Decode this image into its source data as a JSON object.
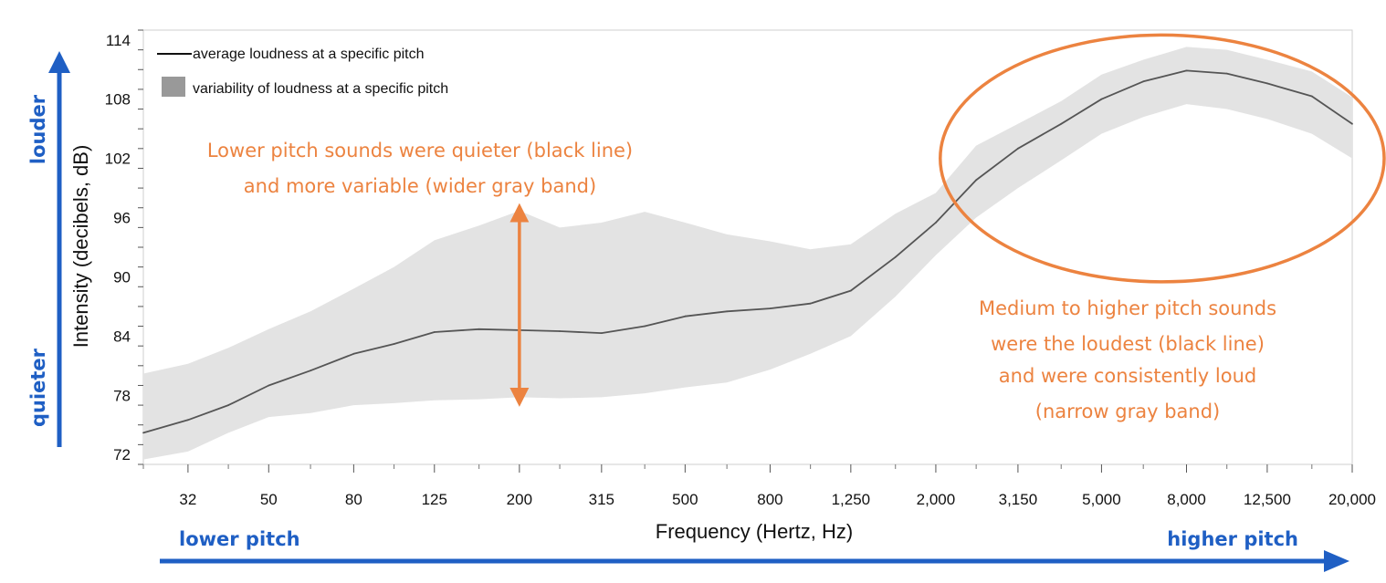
{
  "chart_data": {
    "type": "line",
    "xlabel": "Frequency (Hertz, Hz)",
    "ylabel": "Intensity  (decibels, dB)",
    "x_scale": "log",
    "xlim": [
      25,
      20000
    ],
    "ylim": [
      71,
      115
    ],
    "x_ticks": [
      {
        "value": 32,
        "label": "32"
      },
      {
        "value": 50,
        "label": "50"
      },
      {
        "value": 80,
        "label": "80"
      },
      {
        "value": 125,
        "label": "125"
      },
      {
        "value": 200,
        "label": "200"
      },
      {
        "value": 315,
        "label": "315"
      },
      {
        "value": 500,
        "label": "500"
      },
      {
        "value": 800,
        "label": "800"
      },
      {
        "value": 1250,
        "label": "1,250"
      },
      {
        "value": 2000,
        "label": "2,000"
      },
      {
        "value": 3150,
        "label": "3,150"
      },
      {
        "value": 5000,
        "label": "5,000"
      },
      {
        "value": 8000,
        "label": "8,000"
      },
      {
        "value": 12500,
        "label": "12,500"
      },
      {
        "value": 20000,
        "label": "20,000"
      }
    ],
    "y_ticks": [
      72,
      78,
      84,
      90,
      96,
      102,
      108,
      114
    ],
    "grid": false,
    "legend": {
      "placement": "top-left",
      "entries": [
        {
          "label": "average loudness at a specific pitch",
          "kind": "line",
          "color": "#111111"
        },
        {
          "label": "variability of loudness at a specific pitch",
          "kind": "area",
          "color": "#999999"
        }
      ]
    },
    "x": [
      25,
      32,
      40,
      50,
      63,
      80,
      100,
      125,
      160,
      200,
      250,
      315,
      400,
      500,
      630,
      800,
      1000,
      1250,
      1600,
      2000,
      2500,
      3150,
      4000,
      5000,
      6300,
      8000,
      10000,
      12500,
      16000,
      20000
    ],
    "series": [
      {
        "name": "average loudness at a specific pitch",
        "color": "#555555",
        "values": [
          74.2,
          75.5,
          77.0,
          79.0,
          80.5,
          82.2,
          83.2,
          84.4,
          84.7,
          84.6,
          84.5,
          84.3,
          85.0,
          86.0,
          86.5,
          86.8,
          87.3,
          88.6,
          92.0,
          95.5,
          99.8,
          103.0,
          105.5,
          108.0,
          109.8,
          110.9,
          110.6,
          109.6,
          108.3,
          105.5
        ]
      }
    ],
    "band": {
      "name": "variability of loudness at a specific pitch",
      "color": "#e3e3e3",
      "upper": [
        80.2,
        81.2,
        82.8,
        84.7,
        86.5,
        88.8,
        91.0,
        93.7,
        95.2,
        96.7,
        95.0,
        95.5,
        96.6,
        95.5,
        94.3,
        93.6,
        92.8,
        93.3,
        96.4,
        98.5,
        103.3,
        105.5,
        107.8,
        110.5,
        112.0,
        113.3,
        113.0,
        112.0,
        110.8,
        108.2
      ],
      "lower": [
        71.5,
        72.3,
        74.2,
        75.8,
        76.2,
        77.0,
        77.2,
        77.5,
        77.6,
        77.8,
        77.7,
        77.8,
        78.2,
        78.8,
        79.3,
        80.6,
        82.2,
        84.0,
        88.0,
        92.2,
        96.0,
        99.0,
        101.8,
        104.5,
        106.2,
        107.5,
        107.0,
        106.0,
        104.5,
        102.0
      ]
    },
    "annotations": [
      {
        "id": "low",
        "lines": [
          "Lower pitch sounds were quieter (black line)",
          "and more variable (wider gray band)"
        ],
        "color": "#ec8340"
      },
      {
        "id": "high",
        "lines": [
          "Medium to higher pitch sounds",
          "were the loudest (black line)",
          "and were consistently loud",
          "(narrow gray band)"
        ],
        "color": "#ec8340"
      }
    ],
    "arrow_range": {
      "x": 200,
      "y_from": 77.8,
      "y_to": 96.5,
      "color": "#ec8340"
    },
    "highlight_ellipse": {
      "x_from": 1900,
      "x_to": 20000,
      "y_from": 89.5,
      "y_to": 114.5,
      "color": "#ec8340"
    }
  },
  "side_labels": {
    "louder": "louder",
    "quieter": "quieter",
    "lower_pitch": "lower pitch",
    "higher_pitch": "higher pitch",
    "color": "#1f5fc4"
  }
}
